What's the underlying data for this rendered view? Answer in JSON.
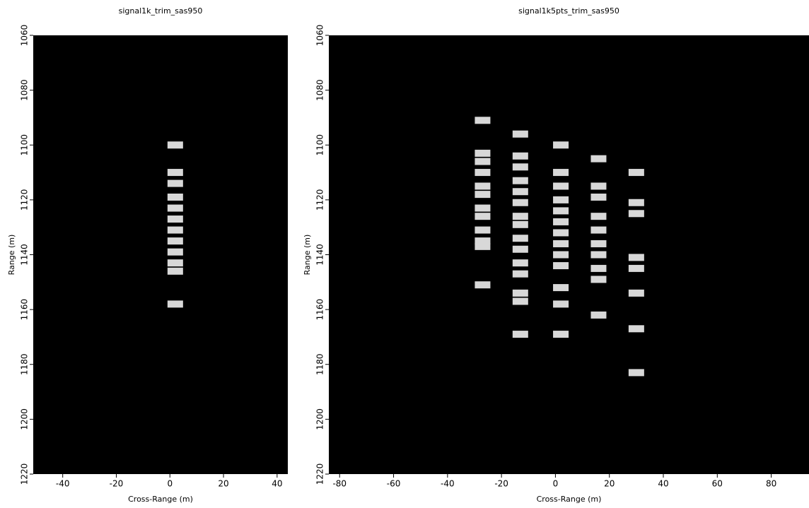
{
  "chart_data": [
    {
      "type": "scatter",
      "title": "signal1k_trim_sas950",
      "x_label": "Cross-Range (m)",
      "y_label": "Range (m)",
      "xlim": [
        -51,
        44
      ],
      "ylim": [
        1220,
        1060
      ],
      "xticks": [
        -40,
        -20,
        0,
        20,
        40
      ],
      "yticks": [
        1060,
        1080,
        1100,
        1120,
        1140,
        1160,
        1180,
        1200,
        1220
      ],
      "background": "#000000",
      "color": "#d8d8d8",
      "x": [
        2,
        2,
        2,
        2,
        2,
        2,
        2,
        2,
        2,
        2,
        2,
        2
      ],
      "y": [
        1100,
        1110,
        1114,
        1119,
        1123,
        1127,
        1131,
        1135,
        1139,
        1143,
        1146,
        1158
      ]
    },
    {
      "type": "scatter",
      "title": "signal1k5pts_trim_sas950",
      "x_label": "Cross-Range (m)",
      "y_label": "Range (m)",
      "xlim": [
        -84,
        94
      ],
      "ylim": [
        1220,
        1060
      ],
      "xticks": [
        -80,
        -60,
        -40,
        -20,
        0,
        20,
        40,
        60,
        80
      ],
      "yticks": [
        1060,
        1080,
        1100,
        1120,
        1140,
        1160,
        1180,
        1200,
        1220
      ],
      "background": "#000000",
      "color": "#d8d8d8",
      "x": [
        -27,
        -27,
        -27,
        -27,
        -27,
        -27,
        -27,
        -27,
        -27,
        -27,
        -27,
        -27,
        -13,
        -13,
        -13,
        -13,
        -13,
        -13,
        -13,
        -13,
        -13,
        -13,
        -13,
        -13,
        -13,
        -13,
        -13,
        2,
        2,
        2,
        2,
        2,
        2,
        2,
        2,
        2,
        2,
        2,
        2,
        2,
        16,
        16,
        16,
        16,
        16,
        16,
        16,
        16,
        16,
        16,
        30,
        30,
        30,
        30,
        30,
        30,
        30,
        30
      ],
      "y": [
        1091,
        1103,
        1106,
        1110,
        1115,
        1118,
        1123,
        1126,
        1131,
        1135,
        1137,
        1151,
        1096,
        1104,
        1108,
        1113,
        1117,
        1121,
        1126,
        1129,
        1134,
        1138,
        1143,
        1147,
        1154,
        1157,
        1169,
        1100,
        1110,
        1115,
        1120,
        1124,
        1128,
        1132,
        1136,
        1140,
        1144,
        1152,
        1158,
        1169,
        1105,
        1115,
        1119,
        1126,
        1131,
        1136,
        1140,
        1145,
        1149,
        1162,
        1110,
        1121,
        1125,
        1141,
        1145,
        1154,
        1167,
        1183
      ]
    }
  ]
}
